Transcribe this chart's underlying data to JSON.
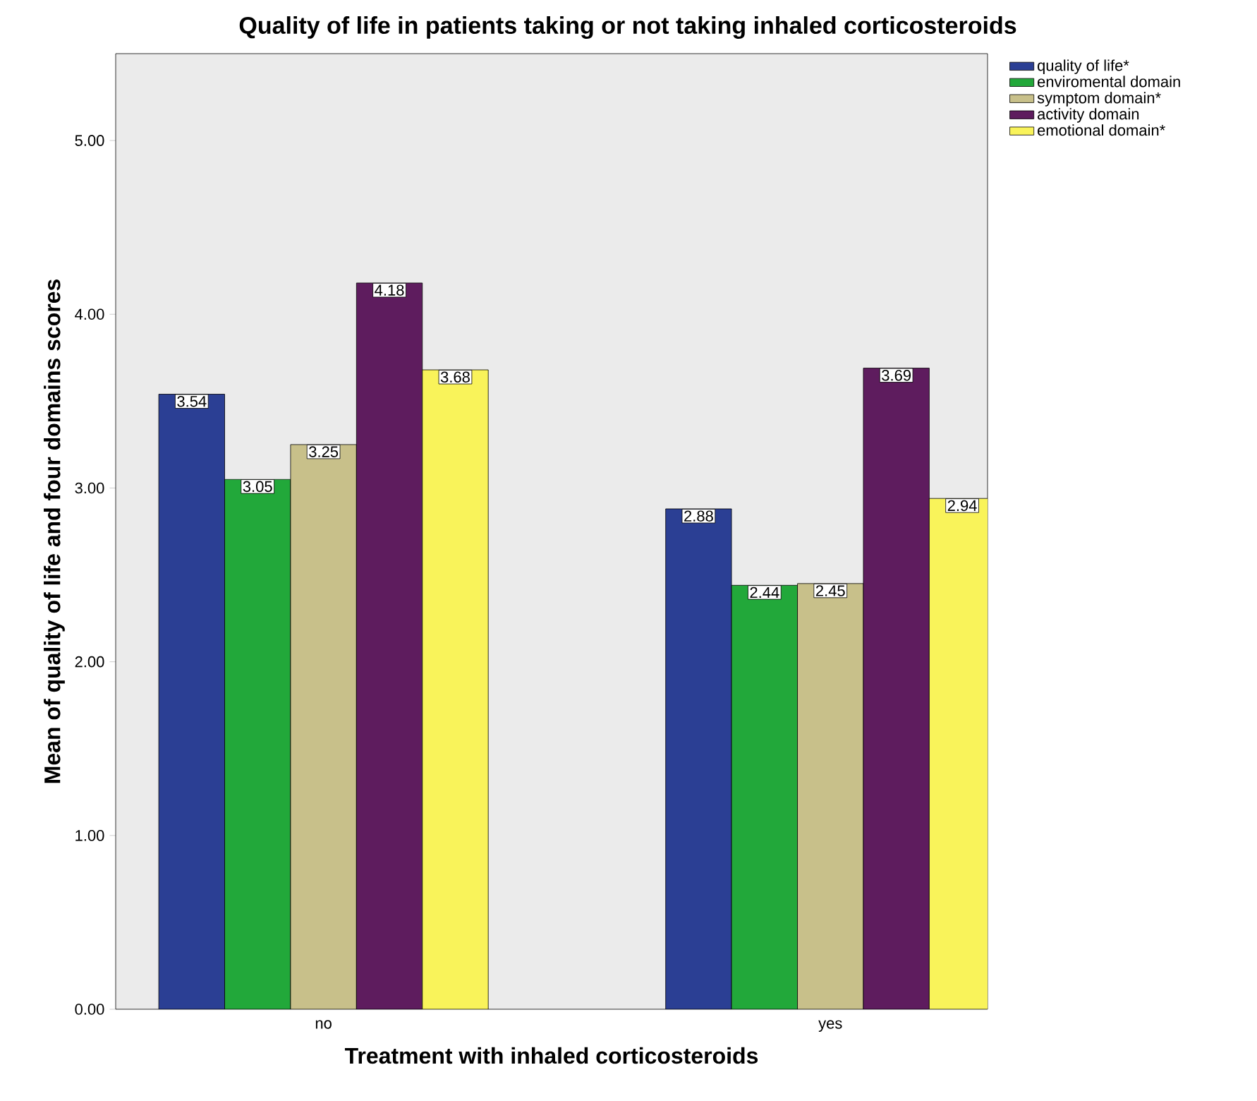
{
  "chart_data": {
    "type": "bar",
    "title": "Quality of life in patients taking or not taking inhaled corticosteroids",
    "xlabel": "Treatment with inhaled corticosteroids",
    "ylabel": "Mean of quality of life and four domains scores",
    "categories": [
      "no",
      "yes"
    ],
    "series": [
      {
        "name": "quality of life*",
        "color": "#2b3f94",
        "values": [
          3.54,
          2.88
        ]
      },
      {
        "name": "enviromental domain",
        "color": "#22a83a",
        "values": [
          3.05,
          2.44
        ]
      },
      {
        "name": "symptom domain*",
        "color": "#c8c08a",
        "values": [
          3.25,
          2.45
        ]
      },
      {
        "name": "activity domain",
        "color": "#5e1c5e",
        "values": [
          4.18,
          3.69
        ]
      },
      {
        "name": "emotional domain*",
        "color": "#f9f35a",
        "values": [
          3.68,
          2.94
        ]
      }
    ],
    "ylim": [
      0,
      5.5
    ],
    "yticks": [
      {
        "value": 0,
        "label": "0.00"
      },
      {
        "value": 1,
        "label": "1.00"
      },
      {
        "value": 2,
        "label": "2.00"
      },
      {
        "value": 3,
        "label": "3.00"
      },
      {
        "value": 4,
        "label": "4.00"
      },
      {
        "value": 5,
        "label": "5.00"
      }
    ],
    "data_labels": true,
    "legend": "right",
    "grid": false
  }
}
